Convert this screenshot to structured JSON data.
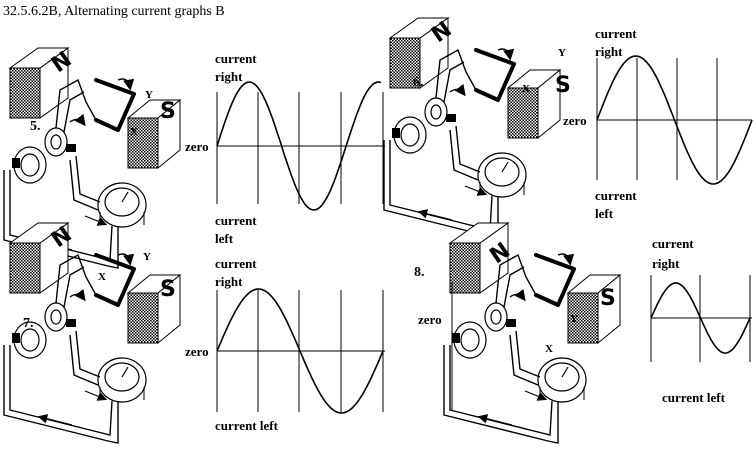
{
  "title": "32.5.6.2B, Alternating current graphs B",
  "labels": {
    "current_right": [
      "current",
      "right"
    ],
    "current_left": [
      "current",
      "left"
    ],
    "current_left_inline": "current  left",
    "zero": "zero",
    "north": "N",
    "south": "S",
    "x": "X",
    "y": "Y"
  },
  "panels": [
    {
      "number": "5.",
      "phase_start": 0,
      "phase_end": 1.25
    },
    {
      "number": "6.",
      "phase_start": 0,
      "phase_end": 1.0
    },
    {
      "number": "7.",
      "phase_start": 0,
      "phase_end": 1.0
    },
    {
      "number": "8.",
      "phase_start": 0,
      "phase_end": 1.0
    }
  ]
}
